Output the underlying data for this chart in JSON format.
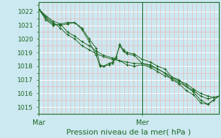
{
  "xlabel": "Pression niveau de la mer( hPa )",
  "xtick_labels": [
    "Mar",
    "Mer"
  ],
  "xtick_positions": [
    0.0,
    0.575
  ],
  "ylim": [
    1014.5,
    1022.7
  ],
  "yticks": [
    1015,
    1016,
    1017,
    1018,
    1019,
    1020,
    1021,
    1022
  ],
  "bg_color": "#cce8f0",
  "grid_color_white": "#ffffff",
  "grid_color_pink": "#e8b8b8",
  "line_color": "#1a6620",
  "lines": [
    [
      0.0,
      1022.2,
      0.04,
      1021.6,
      0.08,
      1021.2,
      0.12,
      1020.8,
      0.16,
      1020.3,
      0.2,
      1020.0,
      0.24,
      1019.5,
      0.28,
      1019.2,
      0.32,
      1018.9,
      0.36,
      1018.7,
      0.41,
      1018.5,
      0.45,
      1018.4,
      0.49,
      1018.3,
      0.53,
      1018.2,
      0.575,
      1018.2,
      0.62,
      1018.0,
      0.66,
      1017.8,
      0.7,
      1017.5,
      0.74,
      1017.2,
      0.78,
      1016.9,
      0.82,
      1016.7,
      0.86,
      1016.3,
      0.9,
      1016.0,
      0.94,
      1015.8,
      0.97,
      1015.7,
      1.0,
      1015.8
    ],
    [
      0.0,
      1022.2,
      0.04,
      1021.5,
      0.08,
      1021.1,
      0.12,
      1021.0,
      0.16,
      1021.1,
      0.2,
      1021.2,
      0.24,
      1020.8,
      0.28,
      1020.0,
      0.32,
      1019.3,
      0.34,
      1018.1,
      0.36,
      1018.0,
      0.39,
      1018.1,
      0.41,
      1018.2,
      0.43,
      1018.6,
      0.45,
      1019.6,
      0.47,
      1019.2,
      0.49,
      1019.0,
      0.53,
      1018.9,
      0.575,
      1018.5,
      0.62,
      1018.3,
      0.66,
      1018.0,
      0.7,
      1017.8,
      0.74,
      1017.2,
      0.78,
      1017.0,
      0.82,
      1016.5,
      0.86,
      1016.1,
      0.9,
      1015.5,
      0.94,
      1015.2,
      0.97,
      1015.5,
      1.0,
      1015.8
    ],
    [
      0.0,
      1022.2,
      0.04,
      1021.4,
      0.08,
      1021.0,
      0.12,
      1021.1,
      0.16,
      1021.2,
      0.2,
      1021.2,
      0.24,
      1020.7,
      0.28,
      1019.8,
      0.32,
      1018.8,
      0.34,
      1018.0,
      0.36,
      1018.0,
      0.39,
      1018.2,
      0.41,
      1018.3,
      0.43,
      1018.7,
      0.45,
      1019.5,
      0.47,
      1019.1,
      0.49,
      1018.9,
      0.53,
      1018.8,
      0.575,
      1018.2,
      0.62,
      1018.1,
      0.66,
      1017.8,
      0.7,
      1017.5,
      0.74,
      1017.0,
      0.78,
      1016.7,
      0.82,
      1016.2,
      0.86,
      1015.9,
      0.9,
      1015.3,
      0.94,
      1015.2,
      0.97,
      1015.5,
      1.0,
      1015.8
    ],
    [
      0.0,
      1022.2,
      0.04,
      1021.7,
      0.08,
      1021.3,
      0.12,
      1021.1,
      0.16,
      1020.5,
      0.2,
      1020.2,
      0.24,
      1019.8,
      0.28,
      1019.5,
      0.32,
      1019.1,
      0.36,
      1018.8,
      0.41,
      1018.6,
      0.45,
      1018.4,
      0.49,
      1018.1,
      0.53,
      1018.0,
      0.575,
      1018.1,
      0.62,
      1017.9,
      0.66,
      1017.6,
      0.7,
      1017.3,
      0.74,
      1017.1,
      0.78,
      1016.8,
      0.82,
      1016.5,
      0.86,
      1016.2,
      0.9,
      1015.8,
      0.94,
      1015.6,
      0.97,
      1015.7,
      1.0,
      1015.8
    ]
  ],
  "vline_x": 0.575,
  "n_vertical_grid": 40,
  "ytick_fontsize": 6.5,
  "xtick_fontsize": 7,
  "xlabel_fontsize": 8
}
